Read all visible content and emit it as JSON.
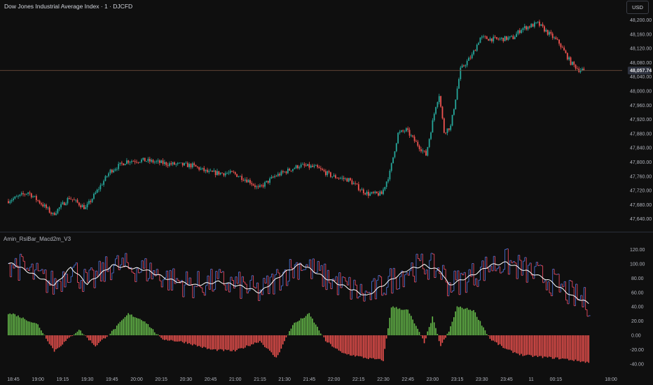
{
  "header": {
    "symbol_title": "Dow Jones Industrial Average Index · 1 · DJCFD",
    "currency_button": "USD"
  },
  "price_panel": {
    "last_price_label": "48,057.74",
    "last_price": 48057.74,
    "y_ticks": [
      "48,200.00",
      "48,160.00",
      "48,120.00",
      "48,080.00",
      "48,040.00",
      "48,000.00",
      "47,960.00",
      "47,920.00",
      "47,880.00",
      "47,840.00",
      "47,800.00",
      "47,760.00",
      "47,720.00",
      "47,680.00",
      "47,640.00"
    ],
    "y_tick_values": [
      48200,
      48160,
      48120,
      48080,
      48040,
      48000,
      47960,
      47920,
      47880,
      47840,
      47800,
      47760,
      47720,
      47680,
      47640
    ],
    "ylim": [
      47625,
      48220
    ]
  },
  "indicator_panel": {
    "name": "Amin_RsiBar_Macd2m_V3",
    "y_ticks": [
      "120.00",
      "100.00",
      "80.00",
      "60.00",
      "40.00",
      "20.00",
      "0.00",
      "-20.00",
      "-40.00"
    ],
    "y_tick_values": [
      120,
      100,
      80,
      60,
      40,
      20,
      0,
      -20,
      -40
    ],
    "ylim": [
      -47,
      127
    ]
  },
  "time_axis": {
    "labels": [
      "18:45",
      "19:00",
      "19:15",
      "19:30",
      "19:45",
      "20:00",
      "20:15",
      "20:30",
      "20:45",
      "21:00",
      "21:15",
      "21:30",
      "21:45",
      "22:00",
      "22:15",
      "22:30",
      "22:45",
      "23:00",
      "23:15",
      "23:30",
      "23:45",
      "11",
      "00:15",
      "18:00"
    ]
  },
  "colors": {
    "background": "#0f0f0f",
    "up": "#26a69a",
    "down": "#ef5350",
    "hist_up": "#66bb4a",
    "hist_down": "#f0524f",
    "rsi_up": "#4a6fd0",
    "rsi_down": "#e84a5f",
    "ma_line": "#ffffff"
  },
  "chart_data": [
    {
      "type": "candlestick",
      "title": "Dow Jones Industrial Average Index · 1 · DJCFD",
      "x_range": [
        "18:45",
        "00:35"
      ],
      "trend_anchors": [
        {
          "t": "18:42",
          "price": 47690
        },
        {
          "t": "18:48",
          "price": 47700
        },
        {
          "t": "18:55",
          "price": 47715
        },
        {
          "t": "19:05",
          "price": 47675
        },
        {
          "t": "19:10",
          "price": 47652
        },
        {
          "t": "19:20",
          "price": 47700
        },
        {
          "t": "19:30",
          "price": 47670
        },
        {
          "t": "19:35",
          "price": 47705
        },
        {
          "t": "19:45",
          "price": 47775
        },
        {
          "t": "19:55",
          "price": 47803
        },
        {
          "t": "20:05",
          "price": 47805
        },
        {
          "t": "20:20",
          "price": 47795
        },
        {
          "t": "20:35",
          "price": 47790
        },
        {
          "t": "20:45",
          "price": 47770
        },
        {
          "t": "21:00",
          "price": 47768
        },
        {
          "t": "21:10",
          "price": 47745
        },
        {
          "t": "21:15",
          "price": 47725
        },
        {
          "t": "21:25",
          "price": 47760
        },
        {
          "t": "21:40",
          "price": 47790
        },
        {
          "t": "21:50",
          "price": 47785
        },
        {
          "t": "22:00",
          "price": 47760
        },
        {
          "t": "22:10",
          "price": 47750
        },
        {
          "t": "22:18",
          "price": 47720
        },
        {
          "t": "22:22",
          "price": 47710
        },
        {
          "t": "22:30",
          "price": 47710
        },
        {
          "t": "22:35",
          "price": 47770
        },
        {
          "t": "22:40",
          "price": 47880
        },
        {
          "t": "22:45",
          "price": 47890
        },
        {
          "t": "22:50",
          "price": 47860
        },
        {
          "t": "22:57",
          "price": 47820
        },
        {
          "t": "23:03",
          "price": 47960
        },
        {
          "t": "23:05",
          "price": 47990
        },
        {
          "t": "23:08",
          "price": 47885
        },
        {
          "t": "23:12",
          "price": 47900
        },
        {
          "t": "23:18",
          "price": 48060
        },
        {
          "t": "23:25",
          "price": 48100
        },
        {
          "t": "23:30",
          "price": 48150
        },
        {
          "t": "23:40",
          "price": 48145
        },
        {
          "t": "23:50",
          "price": 48150
        },
        {
          "t": "23:55",
          "price": 48175
        },
        {
          "t": "00:05",
          "price": 48190
        },
        {
          "t": "00:12",
          "price": 48160
        },
        {
          "t": "00:18",
          "price": 48135
        },
        {
          "t": "00:25",
          "price": 48080
        },
        {
          "t": "00:30",
          "price": 48060
        }
      ],
      "y_ticks": [
        48200,
        48160,
        48120,
        48080,
        48040,
        48000,
        47960,
        47920,
        47880,
        47840,
        47800,
        47760,
        47720,
        47680,
        47640
      ],
      "last_price": 48057.74
    },
    {
      "type": "line",
      "title": "Amin_RsiBar_Macd2m_V3",
      "series": [
        {
          "role": "ma_line",
          "x": [
            "18:45",
            "19:00",
            "19:10",
            "19:20",
            "19:30",
            "19:45",
            "19:55",
            "20:05",
            "20:20",
            "20:35",
            "20:50",
            "21:05",
            "21:15",
            "21:30",
            "21:40",
            "21:55",
            "22:10",
            "22:20",
            "22:35",
            "22:45",
            "22:55",
            "23:05",
            "23:10",
            "23:25",
            "23:35",
            "23:45",
            "23:55",
            "00:10",
            "00:25",
            "00:35"
          ],
          "values": [
            100,
            82,
            70,
            95,
            72,
            98,
            95,
            92,
            78,
            70,
            75,
            68,
            60,
            88,
            100,
            80,
            65,
            55,
            78,
            92,
            98,
            90,
            70,
            85,
            98,
            102,
            92,
            78,
            55,
            45
          ]
        },
        {
          "role": "histogram",
          "x": [
            "18:45",
            "19:00",
            "19:10",
            "19:25",
            "19:35",
            "19:45",
            "19:55",
            "20:05",
            "20:15",
            "20:30",
            "20:45",
            "21:00",
            "21:15",
            "21:25",
            "21:35",
            "21:45",
            "21:55",
            "22:05",
            "22:20",
            "22:30",
            "22:35",
            "22:45",
            "22:55",
            "23:00",
            "23:05",
            "23:10",
            "23:15",
            "23:25",
            "23:35",
            "23:45",
            "23:55",
            "00:05",
            "00:20",
            "00:35"
          ],
          "values": [
            30,
            15,
            -22,
            8,
            -15,
            5,
            30,
            20,
            -5,
            -10,
            -20,
            -22,
            -8,
            -32,
            15,
            30,
            -8,
            -25,
            -32,
            -35,
            40,
            35,
            -10,
            25,
            -15,
            5,
            40,
            35,
            -5,
            -20,
            -28,
            -30,
            -33,
            -38
          ]
        }
      ],
      "y_ticks": [
        120,
        100,
        80,
        60,
        40,
        20,
        0,
        -20,
        -40
      ]
    }
  ]
}
